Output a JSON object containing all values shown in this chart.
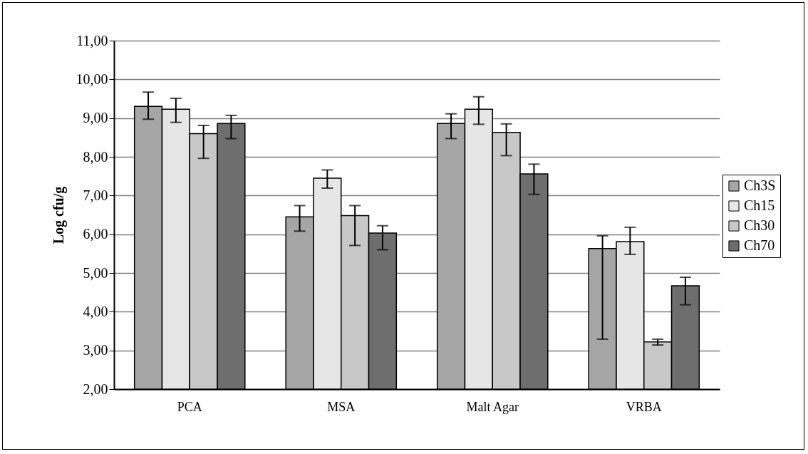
{
  "chart_data": {
    "type": "bar",
    "ylabel": "Log cfu/g",
    "categories": [
      "PCA",
      "MSA",
      "Malt Agar",
      "VRBA"
    ],
    "series": [
      {
        "name": "Ch3S",
        "color": "#a6a6a6",
        "values": [
          9.3,
          6.45,
          8.86,
          5.63
        ],
        "errors": [
          [
            8.97,
            9.67
          ],
          [
            6.08,
            6.74
          ],
          [
            8.47,
            9.11
          ],
          [
            3.29,
            5.96
          ]
        ]
      },
      {
        "name": "Ch15",
        "color": "#e6e6e6",
        "values": [
          9.23,
          7.45,
          9.23,
          5.81
        ],
        "errors": [
          [
            8.89,
            9.51
          ],
          [
            7.19,
            7.66
          ],
          [
            8.84,
            9.55
          ],
          [
            5.48,
            6.18
          ]
        ]
      },
      {
        "name": "Ch30",
        "color": "#c8c8c8",
        "values": [
          8.6,
          6.48,
          8.63,
          3.22
        ],
        "errors": [
          [
            7.96,
            8.81
          ],
          [
            5.71,
            6.74
          ],
          [
            8.03,
            8.85
          ],
          [
            3.14,
            3.29
          ]
        ]
      },
      {
        "name": "Ch70",
        "color": "#6e6e6e",
        "values": [
          8.86,
          6.03,
          7.56,
          4.67
        ],
        "errors": [
          [
            8.47,
            9.07
          ],
          [
            5.6,
            6.22
          ],
          [
            7.03,
            7.81
          ],
          [
            4.18,
            4.89
          ]
        ]
      }
    ],
    "ylim": [
      2,
      11
    ],
    "yticks": [
      {
        "value": 2,
        "label": "2,00"
      },
      {
        "value": 3,
        "label": "3,00"
      },
      {
        "value": 4,
        "label": "4,00"
      },
      {
        "value": 5,
        "label": "5,00"
      },
      {
        "value": 6,
        "label": "6,00"
      },
      {
        "value": 7,
        "label": "7,00"
      },
      {
        "value": 8,
        "label": "8,00"
      },
      {
        "value": 9,
        "label": "9,00"
      },
      {
        "value": 10,
        "label": "10,00"
      },
      {
        "value": 11,
        "label": "11,00"
      }
    ],
    "grid": "y",
    "legend": "right"
  }
}
